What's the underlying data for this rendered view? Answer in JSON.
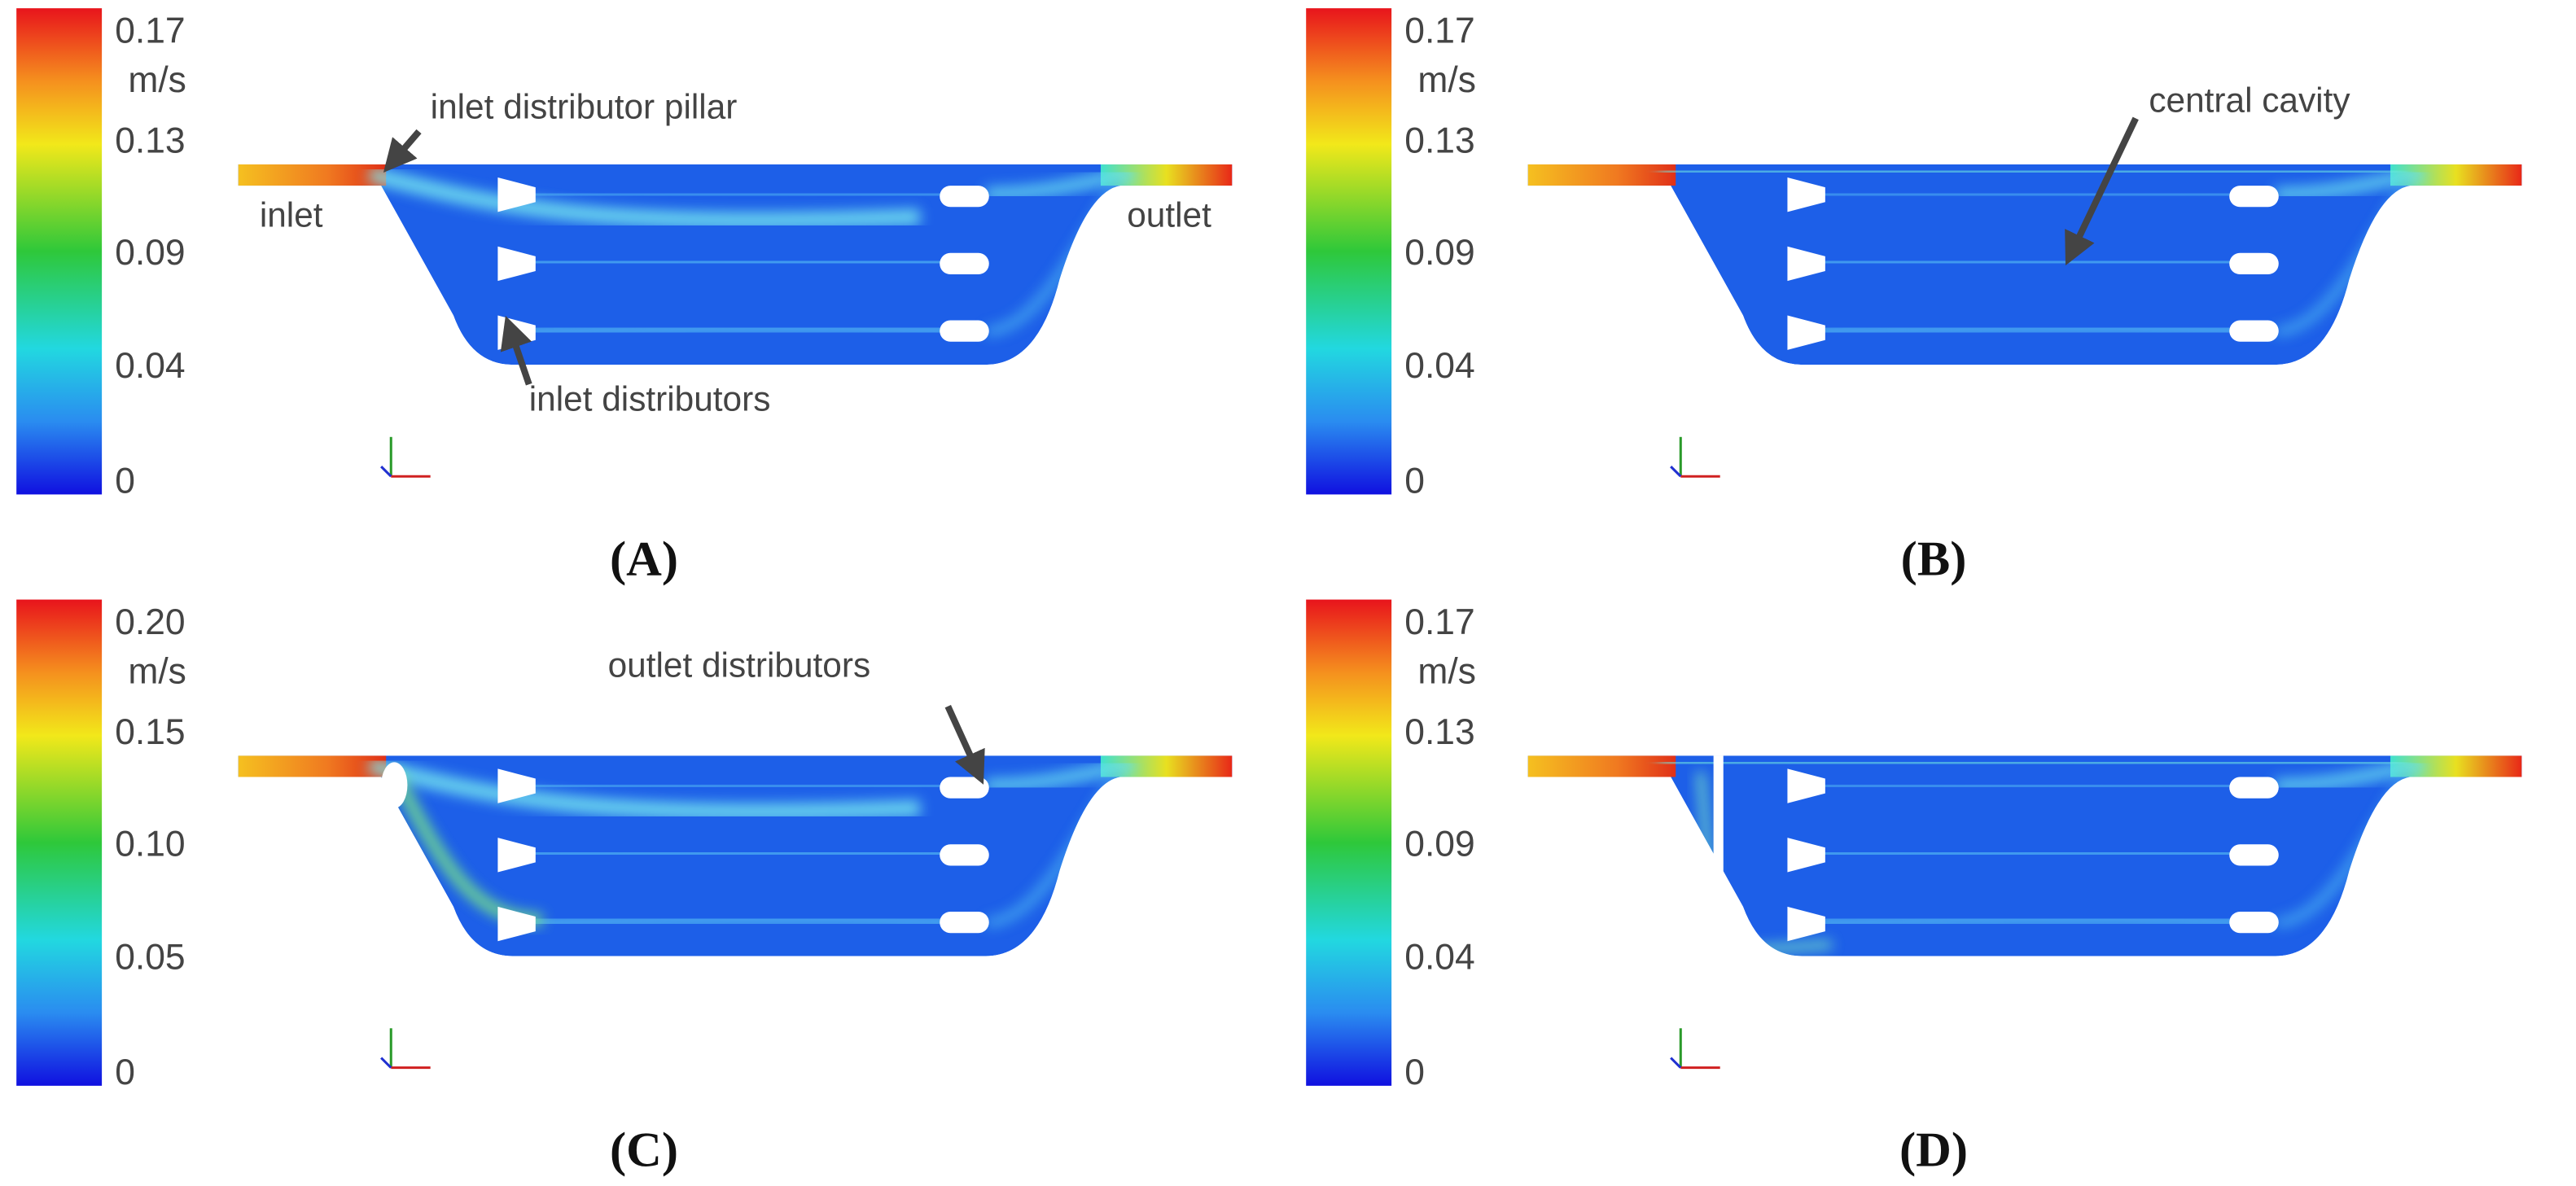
{
  "panels": [
    {
      "label": "(A)",
      "colorbar": {
        "unit": "m/s",
        "labels": [
          "0.17",
          "0.13",
          "0.09",
          "0.04",
          "0"
        ]
      },
      "annotations": [
        "inlet distributor pillar",
        "inlet",
        "outlet",
        "inlet distributors"
      ]
    },
    {
      "label": "(B)",
      "colorbar": {
        "unit": "m/s",
        "labels": [
          "0.17",
          "0.13",
          "0.09",
          "0.04",
          "0"
        ]
      },
      "annotations": [
        "central cavity"
      ]
    },
    {
      "label": "(C)",
      "colorbar": {
        "unit": "m/s",
        "labels": [
          "0.20",
          "0.15",
          "0.10",
          "0.05",
          "0"
        ]
      },
      "annotations": [
        "outlet distributors"
      ]
    },
    {
      "label": "(D)",
      "colorbar": {
        "unit": "m/s",
        "labels": [
          "0.17",
          "0.13",
          "0.09",
          "0.04",
          "0"
        ]
      },
      "annotations": []
    }
  ]
}
